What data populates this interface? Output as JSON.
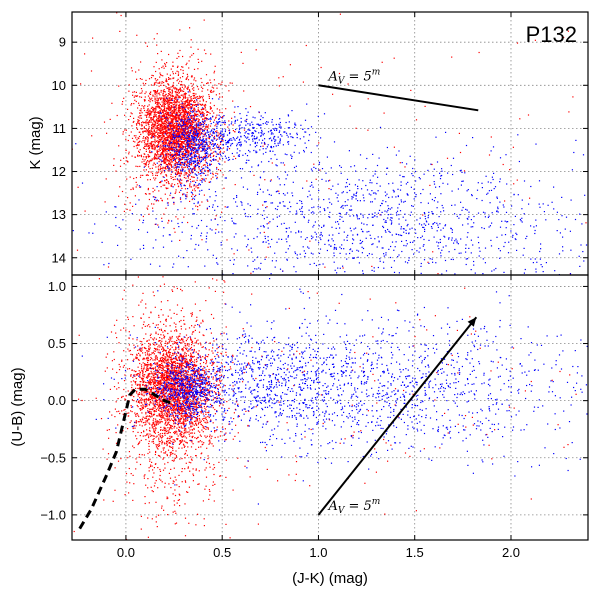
{
  "chart_data": [
    {
      "type": "scatter",
      "panel": "top",
      "label": "P132",
      "xlabel": "",
      "ylabel": "K (mag)",
      "xlim": [
        -0.28,
        2.4
      ],
      "ylim": [
        14.4,
        8.3
      ],
      "y_inverted": true,
      "yticks": [
        9,
        10,
        11,
        12,
        13,
        14
      ],
      "grid": true,
      "colors": {
        "series_a": "#ff0000",
        "series_b": "#0000ff"
      },
      "series": [
        {
          "color": "#ff0000",
          "clusters": [
            {
              "x_center": 0.25,
              "x_spread": 0.09,
              "y_center": 11.0,
              "y_spread": 0.55,
              "n": 2400
            },
            {
              "x_center": 0.26,
              "x_spread": 0.13,
              "y_center": 11.1,
              "y_spread": 0.85,
              "n": 900
            },
            {
              "x_center": 0.9,
              "x_spread": 0.9,
              "y_center": 11.8,
              "y_spread": 2.6,
              "n": 220
            }
          ]
        },
        {
          "color": "#0000ff",
          "clusters": [
            {
              "x_center": 0.33,
              "x_spread": 0.07,
              "y_center": 11.45,
              "y_spread": 0.45,
              "n": 500
            },
            {
              "x_center": 0.6,
              "x_spread": 0.18,
              "y_center": 11.15,
              "y_spread": 0.25,
              "n": 450
            },
            {
              "x_center": 1.25,
              "x_spread": 0.6,
              "y_center": 13.2,
              "y_spread": 0.8,
              "n": 1300
            }
          ]
        }
      ],
      "reddening_vector": {
        "x": [
          1.0,
          1.83
        ],
        "y": [
          10.0,
          10.58
        ],
        "label": "A",
        "label_sub": "V",
        "label_rest": " = 5",
        "label_sup": "m"
      }
    },
    {
      "type": "scatter",
      "panel": "bottom",
      "xlabel": "(J-K) (mag)",
      "ylabel": "(U-B) (mag)",
      "xlim": [
        -0.28,
        2.4
      ],
      "ylim": [
        -1.22,
        1.1
      ],
      "xticks": [
        0.0,
        0.5,
        1.0,
        1.5,
        2.0
      ],
      "xtick_labels": [
        "0.0",
        "0.5",
        "1.0",
        "1.5",
        "2.0"
      ],
      "yticks": [
        -1.0,
        -0.5,
        0.0,
        0.5,
        1.0
      ],
      "ytick_labels": [
        "−1.0",
        "−0.5",
        "0.0",
        "0.5",
        "1.0"
      ],
      "grid": true,
      "series": [
        {
          "color": "#ff0000",
          "clusters": [
            {
              "x_center": 0.24,
              "x_spread": 0.1,
              "y_center": 0.12,
              "y_spread": 0.22,
              "n": 2300
            },
            {
              "x_center": 0.24,
              "x_spread": 0.14,
              "y_center": -0.05,
              "y_spread": 0.45,
              "n": 1100
            },
            {
              "x_center": 0.9,
              "x_spread": 0.9,
              "y_center": 0.1,
              "y_spread": 0.5,
              "n": 220
            }
          ]
        },
        {
          "color": "#0000ff",
          "clusters": [
            {
              "x_center": 0.32,
              "x_spread": 0.08,
              "y_center": 0.1,
              "y_spread": 0.12,
              "n": 500
            },
            {
              "x_center": 0.7,
              "x_spread": 0.25,
              "y_center": 0.18,
              "y_spread": 0.2,
              "n": 550
            },
            {
              "x_center": 1.3,
              "x_spread": 0.55,
              "y_center": 0.12,
              "y_spread": 0.3,
              "n": 1300
            }
          ]
        }
      ],
      "intrinsic_sequence": {
        "x": [
          -0.24,
          -0.18,
          -0.1,
          -0.05,
          0.02,
          0.05,
          0.1,
          0.15,
          0.2,
          0.25
        ],
        "y": [
          -1.12,
          -0.95,
          -0.65,
          -0.45,
          0.05,
          0.1,
          0.1,
          0.05,
          0.0,
          -0.03
        ]
      },
      "reddening_vector": {
        "x": [
          1.0,
          1.82
        ],
        "y": [
          -1.0,
          0.73
        ],
        "label": "A",
        "label_sub": "V",
        "label_rest": " = 5",
        "label_sup": "m"
      }
    }
  ]
}
